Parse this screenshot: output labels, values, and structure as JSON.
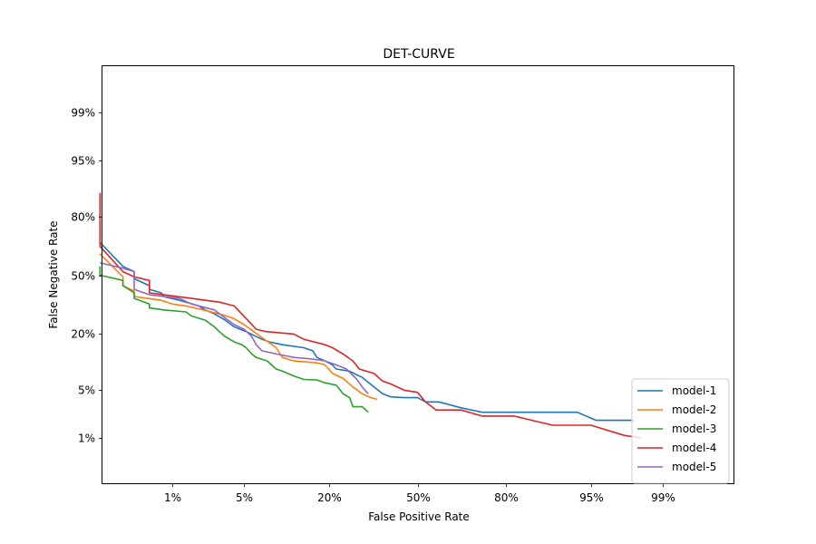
{
  "chart_data": {
    "type": "line",
    "title": "DET-CURVE",
    "xlabel": "False Positive Rate",
    "ylabel": "False Negative Rate",
    "x_scale": "probit",
    "y_scale": "probit",
    "xlim": [
      0.0,
      0.999
    ],
    "ylim": [
      0.0,
      0.999
    ],
    "x_ticks": [
      {
        "value": 0.01,
        "label": "1%"
      },
      {
        "value": 0.05,
        "label": "5%"
      },
      {
        "value": 0.2,
        "label": "20%"
      },
      {
        "value": 0.5,
        "label": "50%"
      },
      {
        "value": 0.8,
        "label": "80%"
      },
      {
        "value": 0.95,
        "label": "95%"
      },
      {
        "value": 0.99,
        "label": "99%"
      }
    ],
    "y_ticks": [
      {
        "value": 0.01,
        "label": "1%"
      },
      {
        "value": 0.05,
        "label": "5%"
      },
      {
        "value": 0.2,
        "label": "20%"
      },
      {
        "value": 0.5,
        "label": "50%"
      },
      {
        "value": 0.8,
        "label": "80%"
      },
      {
        "value": 0.95,
        "label": "95%"
      },
      {
        "value": 0.99,
        "label": "99%"
      }
    ],
    "grid": false,
    "legend_position": "lower-right",
    "series": [
      {
        "name": "model-1",
        "color": "#1f77b4",
        "points": [
          [
            0.0013,
            0.68
          ],
          [
            0.0026,
            0.55
          ],
          [
            0.0036,
            0.52
          ],
          [
            0.0036,
            0.48
          ],
          [
            0.0055,
            0.44
          ],
          [
            0.0055,
            0.42
          ],
          [
            0.0075,
            0.4
          ],
          [
            0.008,
            0.38
          ],
          [
            0.012,
            0.36
          ],
          [
            0.014,
            0.35
          ],
          [
            0.019,
            0.33
          ],
          [
            0.022,
            0.31
          ],
          [
            0.027,
            0.29
          ],
          [
            0.034,
            0.26
          ],
          [
            0.041,
            0.23
          ],
          [
            0.052,
            0.21
          ],
          [
            0.063,
            0.19
          ],
          [
            0.07,
            0.18
          ],
          [
            0.08,
            0.17
          ],
          [
            0.1,
            0.16
          ],
          [
            0.14,
            0.15
          ],
          [
            0.16,
            0.14
          ],
          [
            0.17,
            0.12
          ],
          [
            0.19,
            0.11
          ],
          [
            0.21,
            0.1
          ],
          [
            0.22,
            0.09
          ],
          [
            0.26,
            0.085
          ],
          [
            0.28,
            0.078
          ],
          [
            0.3,
            0.072
          ],
          [
            0.32,
            0.063
          ],
          [
            0.34,
            0.055
          ],
          [
            0.37,
            0.045
          ],
          [
            0.4,
            0.041
          ],
          [
            0.45,
            0.04
          ],
          [
            0.5,
            0.04
          ],
          [
            0.53,
            0.035
          ],
          [
            0.58,
            0.035
          ],
          [
            0.66,
            0.029
          ],
          [
            0.73,
            0.025
          ],
          [
            0.9,
            0.025
          ],
          [
            0.935,
            0.025
          ],
          [
            0.955,
            0.019
          ],
          [
            0.98,
            0.019
          ]
        ]
      },
      {
        "name": "model-2",
        "color": "#ff7f0e",
        "points": [
          [
            0.0013,
            0.62
          ],
          [
            0.0026,
            0.49
          ],
          [
            0.0026,
            0.44
          ],
          [
            0.0036,
            0.41
          ],
          [
            0.0036,
            0.38
          ],
          [
            0.0075,
            0.36
          ],
          [
            0.01,
            0.34
          ],
          [
            0.014,
            0.33
          ],
          [
            0.021,
            0.31
          ],
          [
            0.03,
            0.29
          ],
          [
            0.04,
            0.27
          ],
          [
            0.05,
            0.24
          ],
          [
            0.06,
            0.21
          ],
          [
            0.073,
            0.18
          ],
          [
            0.09,
            0.15
          ],
          [
            0.1,
            0.12
          ],
          [
            0.12,
            0.11
          ],
          [
            0.17,
            0.105
          ],
          [
            0.19,
            0.1
          ],
          [
            0.21,
            0.08
          ],
          [
            0.24,
            0.07
          ],
          [
            0.27,
            0.055
          ],
          [
            0.3,
            0.045
          ],
          [
            0.33,
            0.04
          ],
          [
            0.35,
            0.038
          ]
        ]
      },
      {
        "name": "model-3",
        "color": "#2ca02c",
        "points": [
          [
            0.0013,
            0.55
          ],
          [
            0.0013,
            0.5
          ],
          [
            0.0026,
            0.47
          ],
          [
            0.0026,
            0.44
          ],
          [
            0.0036,
            0.4
          ],
          [
            0.0036,
            0.37
          ],
          [
            0.0055,
            0.34
          ],
          [
            0.0055,
            0.32
          ],
          [
            0.008,
            0.31
          ],
          [
            0.014,
            0.3
          ],
          [
            0.016,
            0.28
          ],
          [
            0.022,
            0.26
          ],
          [
            0.027,
            0.23
          ],
          [
            0.03,
            0.21
          ],
          [
            0.034,
            0.19
          ],
          [
            0.041,
            0.17
          ],
          [
            0.048,
            0.16
          ],
          [
            0.052,
            0.15
          ],
          [
            0.058,
            0.13
          ],
          [
            0.063,
            0.12
          ],
          [
            0.077,
            0.11
          ],
          [
            0.09,
            0.09
          ],
          [
            0.1,
            0.085
          ],
          [
            0.12,
            0.075
          ],
          [
            0.14,
            0.068
          ],
          [
            0.17,
            0.067
          ],
          [
            0.19,
            0.062
          ],
          [
            0.22,
            0.058
          ],
          [
            0.24,
            0.045
          ],
          [
            0.26,
            0.04
          ],
          [
            0.27,
            0.03
          ],
          [
            0.3,
            0.03
          ],
          [
            0.32,
            0.025
          ]
        ]
      },
      {
        "name": "model-4",
        "color": "#d62728",
        "points": [
          [
            0.0013,
            0.88
          ],
          [
            0.0013,
            0.66
          ],
          [
            0.0026,
            0.52
          ],
          [
            0.0036,
            0.49
          ],
          [
            0.0055,
            0.47
          ],
          [
            0.0055,
            0.4
          ],
          [
            0.008,
            0.39
          ],
          [
            0.016,
            0.37
          ],
          [
            0.022,
            0.36
          ],
          [
            0.03,
            0.35
          ],
          [
            0.041,
            0.33
          ],
          [
            0.063,
            0.22
          ],
          [
            0.075,
            0.21
          ],
          [
            0.12,
            0.2
          ],
          [
            0.14,
            0.18
          ],
          [
            0.19,
            0.16
          ],
          [
            0.21,
            0.15
          ],
          [
            0.24,
            0.13
          ],
          [
            0.27,
            0.11
          ],
          [
            0.29,
            0.09
          ],
          [
            0.34,
            0.08
          ],
          [
            0.37,
            0.065
          ],
          [
            0.4,
            0.06
          ],
          [
            0.45,
            0.05
          ],
          [
            0.5,
            0.047
          ],
          [
            0.53,
            0.035
          ],
          [
            0.57,
            0.027
          ],
          [
            0.66,
            0.027
          ],
          [
            0.73,
            0.022
          ],
          [
            0.82,
            0.022
          ],
          [
            0.9,
            0.016
          ],
          [
            0.95,
            0.016
          ],
          [
            0.975,
            0.011
          ],
          [
            0.983,
            0.01
          ]
        ]
      },
      {
        "name": "model-5",
        "color": "#9467bd",
        "points": [
          [
            0.0013,
            0.57
          ],
          [
            0.0026,
            0.54
          ],
          [
            0.0036,
            0.52
          ],
          [
            0.0036,
            0.42
          ],
          [
            0.0055,
            0.39
          ],
          [
            0.008,
            0.38
          ],
          [
            0.012,
            0.37
          ],
          [
            0.016,
            0.34
          ],
          [
            0.027,
            0.31
          ],
          [
            0.034,
            0.27
          ],
          [
            0.041,
            0.24
          ],
          [
            0.05,
            0.22
          ],
          [
            0.058,
            0.19
          ],
          [
            0.063,
            0.16
          ],
          [
            0.07,
            0.14
          ],
          [
            0.09,
            0.13
          ],
          [
            0.12,
            0.12
          ],
          [
            0.16,
            0.115
          ],
          [
            0.19,
            0.11
          ],
          [
            0.22,
            0.1
          ],
          [
            0.25,
            0.09
          ],
          [
            0.28,
            0.07
          ],
          [
            0.3,
            0.055
          ],
          [
            0.32,
            0.045
          ]
        ]
      }
    ]
  }
}
